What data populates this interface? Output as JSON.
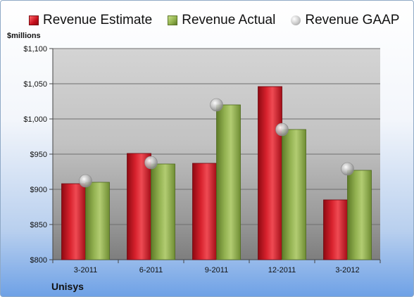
{
  "legend": {
    "estimate": "Revenue Estimate",
    "actual": "Revenue Actual",
    "gaap": "Revenue GAAP"
  },
  "unit_label": "$millions",
  "company": "Unisys",
  "colors": {
    "estimate": "#c8101e",
    "actual": "#8fae4a",
    "gaap": "#bdbdbd"
  },
  "chart_data": {
    "type": "bar",
    "categories": [
      "3-2011",
      "6-2011",
      "9-2011",
      "12-2011",
      "3-2012"
    ],
    "series": [
      {
        "name": "Revenue Estimate",
        "values": [
          908,
          951,
          937,
          1046,
          885
        ]
      },
      {
        "name": "Revenue Actual",
        "values": [
          910,
          936,
          1020,
          985,
          927
        ]
      },
      {
        "name": "Revenue GAAP",
        "values": [
          912,
          938,
          1020,
          985,
          929
        ]
      }
    ],
    "ylim": [
      800,
      1100
    ],
    "yticks": [
      800,
      850,
      900,
      950,
      1000,
      1050,
      1100
    ],
    "ytick_labels": [
      "$800",
      "$850",
      "$900",
      "$950",
      "$1,000",
      "$1,050",
      "$1,100"
    ],
    "ylabel": "$millions",
    "grid": true,
    "legend_position": "top"
  }
}
